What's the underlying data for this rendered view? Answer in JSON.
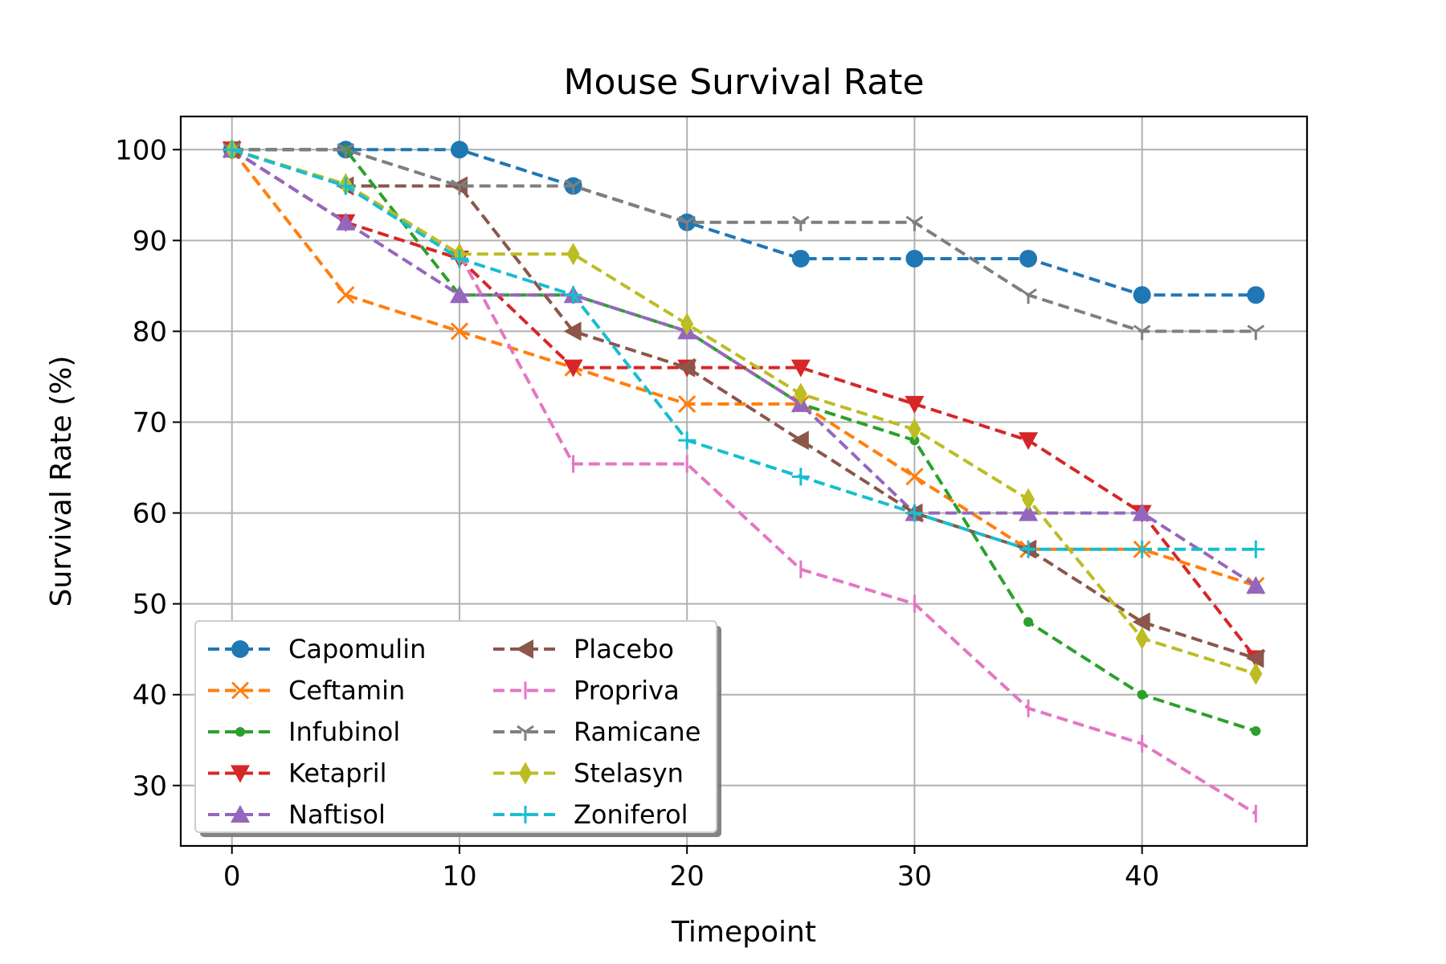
{
  "chart_data": {
    "type": "line",
    "title": "Mouse Survival Rate",
    "xlabel": "Timepoint",
    "ylabel": "Survival Rate (%)",
    "xlim": [
      -2.25,
      47.25
    ],
    "ylim": [
      23.35,
      103.65
    ],
    "xticks": [
      0,
      10,
      20,
      30,
      40
    ],
    "yticks": [
      30,
      40,
      50,
      60,
      70,
      80,
      90,
      100
    ],
    "grid": true,
    "legend": {
      "placement": "lower-left",
      "columns": 2
    },
    "x": [
      0,
      5,
      10,
      15,
      20,
      25,
      30,
      35,
      40,
      45
    ],
    "series": [
      {
        "name": "Capomulin",
        "color": "#1f77b4",
        "marker": "circle",
        "values": [
          100,
          100,
          100,
          96,
          92,
          88,
          88,
          88,
          84,
          84
        ]
      },
      {
        "name": "Ceftamin",
        "color": "#ff7f0e",
        "marker": "x",
        "values": [
          100,
          84,
          80,
          76,
          72,
          72,
          64,
          56,
          56,
          52
        ]
      },
      {
        "name": "Infubinol",
        "color": "#2ca02c",
        "marker": "point",
        "values": [
          100,
          100,
          84,
          84,
          80,
          72,
          68,
          48,
          40,
          36
        ]
      },
      {
        "name": "Ketapril",
        "color": "#d62728",
        "marker": "triangle-down",
        "values": [
          100,
          92,
          88,
          76,
          76,
          76,
          72,
          68,
          60,
          44
        ]
      },
      {
        "name": "Naftisol",
        "color": "#9467bd",
        "marker": "triangle-up",
        "values": [
          100,
          92,
          84,
          84,
          80,
          72,
          60,
          60,
          60,
          52
        ]
      },
      {
        "name": "Placebo",
        "color": "#8c564b",
        "marker": "triangle-left",
        "values": [
          100,
          96,
          96,
          80,
          76,
          68,
          60,
          56,
          48,
          44
        ]
      },
      {
        "name": "Propriva",
        "color": "#e377c2",
        "marker": "tick",
        "values": [
          100,
          96,
          88.5,
          65.4,
          65.4,
          53.8,
          50,
          38.5,
          34.6,
          26.9
        ]
      },
      {
        "name": "Ramicane",
        "color": "#7f7f7f",
        "marker": "tri-down",
        "values": [
          100,
          100,
          96,
          96,
          92,
          92,
          92,
          84,
          80,
          80
        ]
      },
      {
        "name": "Stelasyn",
        "color": "#bcbd22",
        "marker": "thin-diamond",
        "values": [
          100,
          96.2,
          88.5,
          88.5,
          80.8,
          73.1,
          69.2,
          61.5,
          46.2,
          42.3
        ]
      },
      {
        "name": "Zoniferol",
        "color": "#17becf",
        "marker": "plus",
        "values": [
          100,
          96,
          88,
          84,
          68,
          64,
          60,
          56,
          56,
          56
        ]
      }
    ]
  }
}
